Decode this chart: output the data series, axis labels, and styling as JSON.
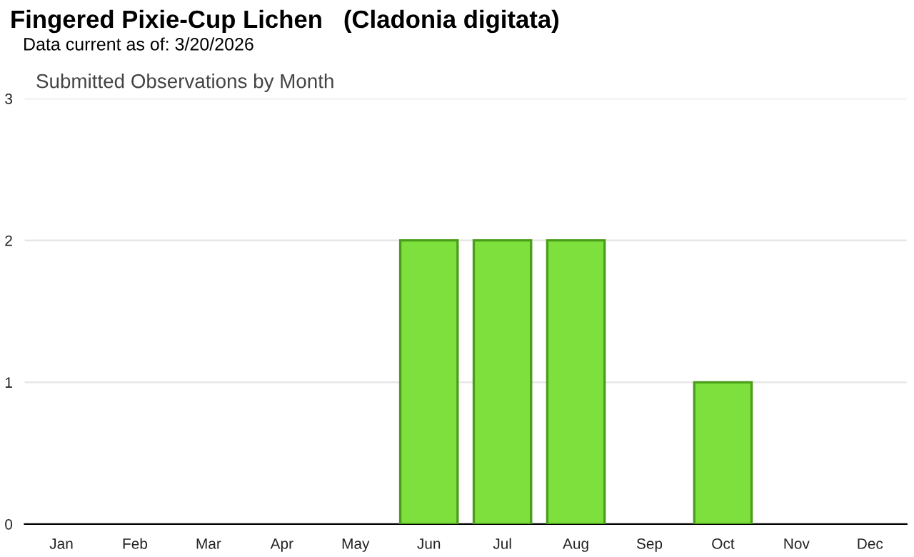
{
  "chart_data": {
    "type": "bar",
    "title": "Fingered Pixie-Cup Lichen   (Cladonia digitata)",
    "subtitle": "Data current as of: 3/20/2026",
    "annotations": [
      "Submitted Observations by Month"
    ],
    "categories": [
      "Jan",
      "Feb",
      "Mar",
      "Apr",
      "May",
      "Jun",
      "Jul",
      "Aug",
      "Sep",
      "Oct",
      "Nov",
      "Dec"
    ],
    "values": [
      0,
      0,
      0,
      0,
      0,
      2,
      2,
      2,
      0,
      1,
      0,
      0
    ],
    "color": "#7ee03c",
    "ylim": [
      0,
      3
    ],
    "yticks": [
      0,
      1,
      2,
      3
    ],
    "grid": "y"
  }
}
